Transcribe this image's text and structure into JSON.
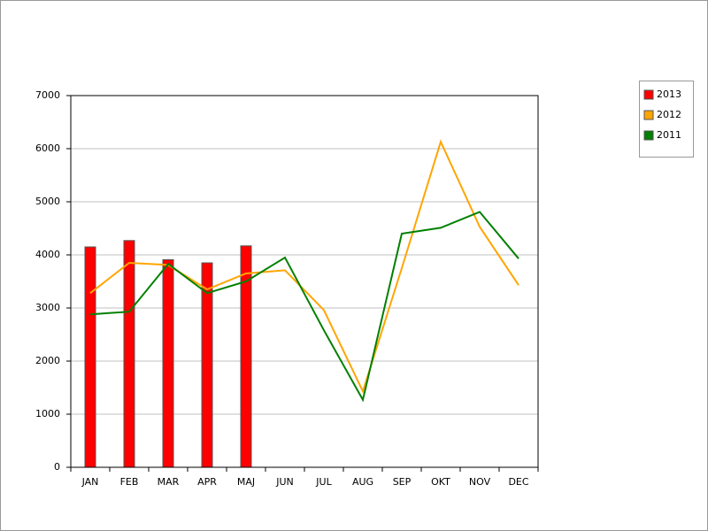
{
  "chart_data": {
    "type": "bar",
    "categories": [
      "JAN",
      "FEB",
      "MAR",
      "APR",
      "MAJ",
      "JUN",
      "JUL",
      "AUG",
      "SEP",
      "OKT",
      "NOV",
      "DEC"
    ],
    "series": [
      {
        "name": "2013",
        "type": "bar",
        "color": "#ff0000",
        "values": [
          4150,
          4270,
          3910,
          3850,
          4170,
          null,
          null,
          null,
          null,
          null,
          null,
          null
        ]
      },
      {
        "name": "2012",
        "type": "line",
        "color": "#ffa500",
        "values": [
          3280,
          3850,
          3810,
          3350,
          3650,
          3710,
          2960,
          1430,
          3750,
          6130,
          4530,
          3430
        ]
      },
      {
        "name": "2011",
        "type": "line",
        "color": "#008000",
        "values": [
          2880,
          2930,
          3830,
          3280,
          3500,
          3950,
          2580,
          1270,
          4400,
          4510,
          4810,
          3930
        ]
      }
    ],
    "ylim": [
      0,
      7000
    ],
    "yticks": [
      0,
      1000,
      2000,
      3000,
      4000,
      5000,
      6000,
      7000
    ],
    "grid": true,
    "legend": "top-right"
  }
}
